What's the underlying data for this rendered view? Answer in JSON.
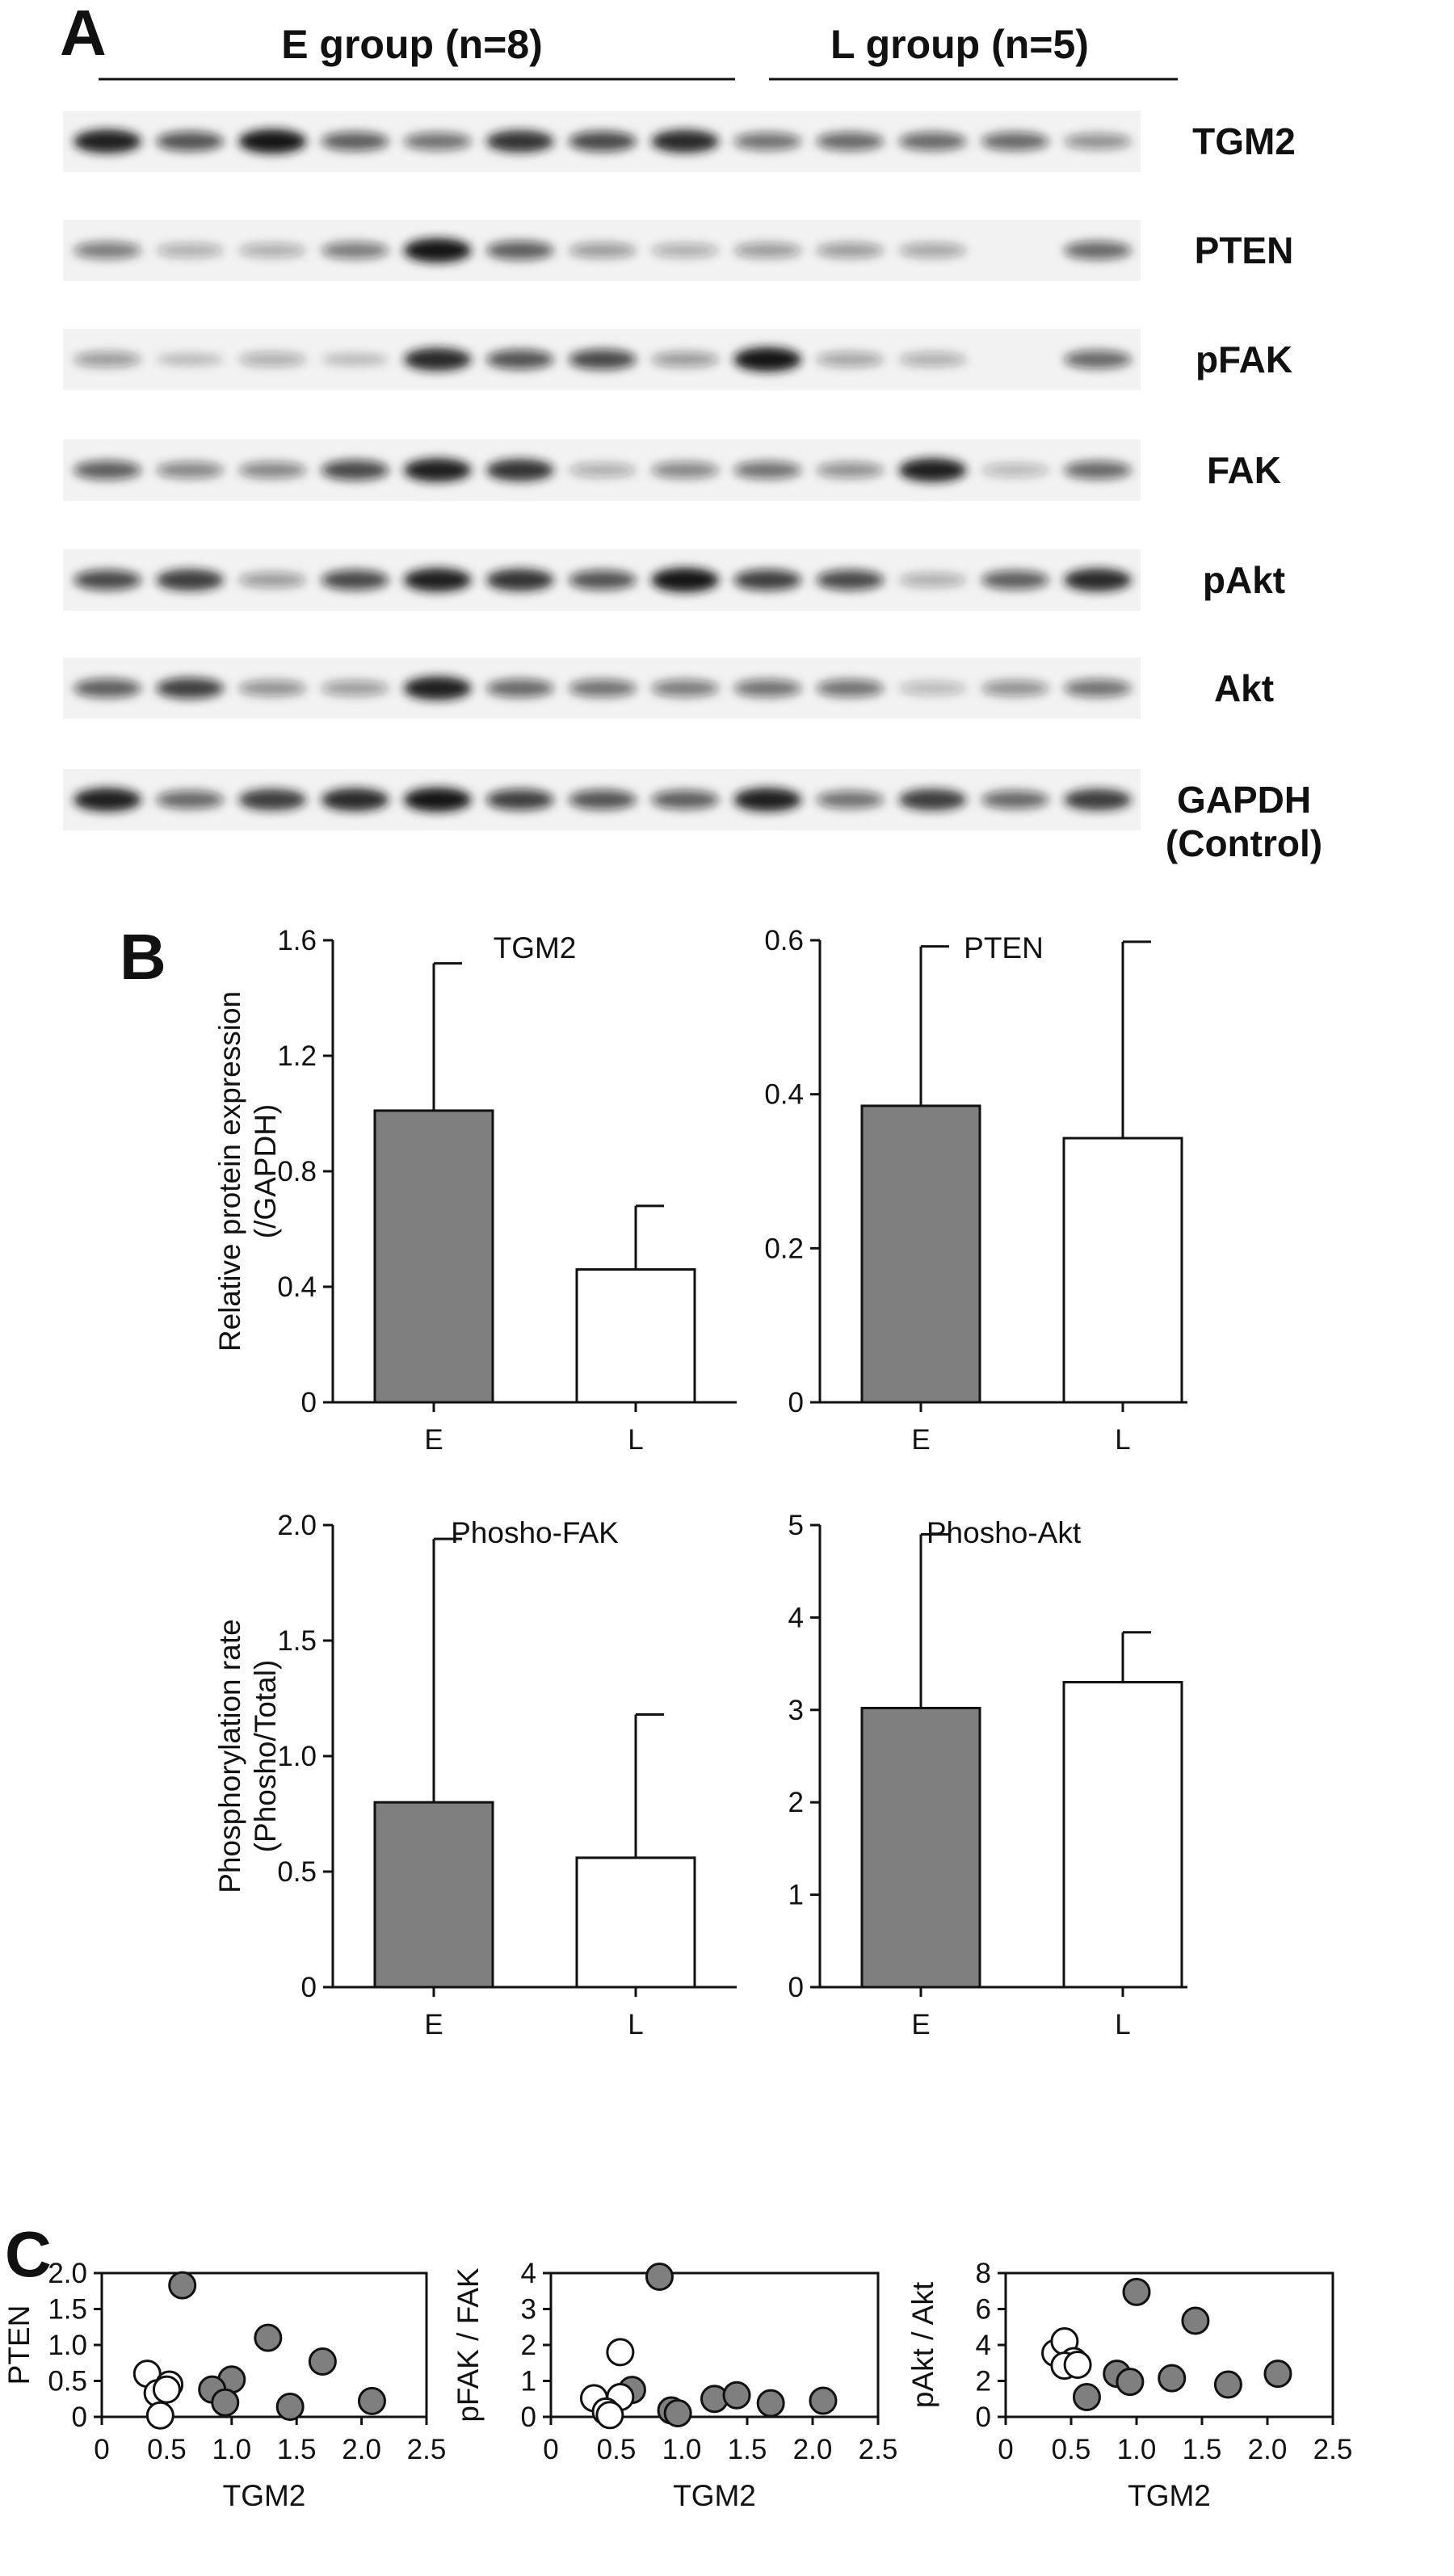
{
  "panels": {
    "a": {
      "letter": "A",
      "groups": [
        {
          "label": "E group (n=8)",
          "lanes": 8
        },
        {
          "label": "L group (n=5)",
          "lanes": 5
        }
      ],
      "blots": [
        {
          "label": "TGM2",
          "intensity": [
            0.95,
            0.65,
            1.0,
            0.6,
            0.5,
            0.85,
            0.7,
            0.9,
            0.5,
            0.55,
            0.55,
            0.55,
            0.35
          ]
        },
        {
          "label": "PTEN",
          "intensity": [
            0.45,
            0.2,
            0.2,
            0.45,
            1.0,
            0.6,
            0.3,
            0.2,
            0.3,
            0.3,
            0.25,
            0.0,
            0.55
          ]
        },
        {
          "label": "pFAK",
          "intensity": [
            0.3,
            0.1,
            0.2,
            0.1,
            0.9,
            0.65,
            0.7,
            0.3,
            1.0,
            0.25,
            0.2,
            0.0,
            0.55
          ]
        },
        {
          "label": "FAK",
          "intensity": [
            0.6,
            0.4,
            0.4,
            0.7,
            0.95,
            0.85,
            0.2,
            0.4,
            0.5,
            0.35,
            0.95,
            0.15,
            0.55
          ]
        },
        {
          "label": "pAkt",
          "intensity": [
            0.7,
            0.8,
            0.3,
            0.7,
            0.95,
            0.85,
            0.65,
            1.0,
            0.75,
            0.7,
            0.2,
            0.6,
            0.9
          ]
        },
        {
          "label": "Akt",
          "intensity": [
            0.6,
            0.75,
            0.35,
            0.3,
            0.95,
            0.55,
            0.5,
            0.45,
            0.5,
            0.5,
            0.15,
            0.35,
            0.5
          ]
        },
        {
          "label": "GAPDH",
          "label2": "(Control)",
          "intensity": [
            0.95,
            0.55,
            0.8,
            0.9,
            1.0,
            0.75,
            0.65,
            0.6,
            0.95,
            0.5,
            0.8,
            0.55,
            0.8
          ]
        }
      ]
    },
    "b": {
      "letter": "B"
    },
    "c": {
      "letter": "C"
    }
  },
  "colors": {
    "e_group": "#7f7f7f",
    "l_group": "#ffffff",
    "outline": "#111111",
    "band": "#141414"
  },
  "chart_data": [
    {
      "type": "bar",
      "title": "TGM2",
      "ylabel": "Relative protein expression (/GAPDH)",
      "ylabel_lines": [
        "Relative protein expression",
        "(/GAPDH)"
      ],
      "categories": [
        "E",
        "L"
      ],
      "values": [
        1.01,
        0.46
      ],
      "errors": [
        0.51,
        0.22
      ],
      "ylim": [
        0,
        1.6
      ],
      "yticks": [
        "0",
        "0.4",
        "0.8",
        "1.2",
        "1.6"
      ],
      "ytick_values": [
        0,
        0.4,
        0.8,
        1.2,
        1.6
      ]
    },
    {
      "type": "bar",
      "title": "PTEN",
      "ylabel": "",
      "categories": [
        "E",
        "L"
      ],
      "values": [
        0.385,
        0.343
      ],
      "errors": [
        0.207,
        0.255
      ],
      "ylim": [
        0,
        0.6
      ],
      "yticks": [
        "0",
        "0.2",
        "0.4",
        "0.6"
      ],
      "ytick_values": [
        0,
        0.2,
        0.4,
        0.6
      ]
    },
    {
      "type": "bar",
      "title": "Phosho-FAK",
      "ylabel": "Phosphorylation rate (Phosho/Total)",
      "ylabel_lines": [
        "Phosphorylation rate",
        "(Phosho/Total)"
      ],
      "categories": [
        "E",
        "L"
      ],
      "values": [
        0.8,
        0.56
      ],
      "errors": [
        1.14,
        0.62
      ],
      "ylim": [
        0,
        2.0
      ],
      "yticks": [
        "0",
        "0.5",
        "1.0",
        "1.5",
        "2.0"
      ],
      "ytick_values": [
        0,
        0.5,
        1.0,
        1.5,
        2.0
      ]
    },
    {
      "type": "bar",
      "title": "Phosho-Akt",
      "ylabel": "",
      "categories": [
        "E",
        "L"
      ],
      "values": [
        3.02,
        3.3
      ],
      "errors": [
        1.88,
        0.54
      ],
      "ylim": [
        0,
        5
      ],
      "yticks": [
        "0",
        "1",
        "2",
        "3",
        "4",
        "5"
      ],
      "ytick_values": [
        0,
        1,
        2,
        3,
        4,
        5
      ]
    },
    {
      "type": "scatter",
      "xlabel": "TGM2",
      "ylabel": "PTEN",
      "xlim": [
        0,
        2.5
      ],
      "ylim": [
        0,
        2.0
      ],
      "xticks": [
        "0",
        "0.5",
        "1.0",
        "1.5",
        "2.0",
        "2.5"
      ],
      "xtick_values": [
        0,
        0.5,
        1.0,
        1.5,
        2.0,
        2.5
      ],
      "yticks": [
        "0",
        "0.5",
        "1.0",
        "1.5",
        "2.0"
      ],
      "ytick_values": [
        0,
        0.5,
        1.0,
        1.5,
        2.0
      ],
      "series": [
        {
          "group": "E",
          "points": [
            [
              0.62,
              1.83
            ],
            [
              1.28,
              1.1
            ],
            [
              1.7,
              0.77
            ],
            [
              1.0,
              0.52
            ],
            [
              0.85,
              0.38
            ],
            [
              0.95,
              0.2
            ],
            [
              1.45,
              0.14
            ],
            [
              2.08,
              0.22
            ]
          ]
        },
        {
          "group": "L",
          "points": [
            [
              0.35,
              0.6
            ],
            [
              0.52,
              0.45
            ],
            [
              0.43,
              0.33
            ],
            [
              0.5,
              0.38
            ],
            [
              0.45,
              0.02
            ]
          ]
        }
      ]
    },
    {
      "type": "scatter",
      "xlabel": "TGM2",
      "ylabel": "pFAK / FAK",
      "xlim": [
        0,
        2.5
      ],
      "ylim": [
        0,
        4
      ],
      "xticks": [
        "0",
        "0.5",
        "1.0",
        "1.5",
        "2.0",
        "2.5"
      ],
      "xtick_values": [
        0,
        0.5,
        1.0,
        1.5,
        2.0,
        2.5
      ],
      "yticks": [
        "0",
        "1",
        "2",
        "3",
        "4"
      ],
      "ytick_values": [
        0,
        1,
        2,
        3,
        4
      ],
      "series": [
        {
          "group": "E",
          "points": [
            [
              0.83,
              3.9
            ],
            [
              0.62,
              0.75
            ],
            [
              1.25,
              0.5
            ],
            [
              1.42,
              0.6
            ],
            [
              1.68,
              0.38
            ],
            [
              2.08,
              0.45
            ],
            [
              0.92,
              0.18
            ],
            [
              0.97,
              0.1
            ]
          ]
        },
        {
          "group": "L",
          "points": [
            [
              0.53,
              1.8
            ],
            [
              0.33,
              0.52
            ],
            [
              0.53,
              0.55
            ],
            [
              0.42,
              0.15
            ],
            [
              0.45,
              0.05
            ]
          ]
        }
      ]
    },
    {
      "type": "scatter",
      "xlabel": "TGM2",
      "ylabel": "pAkt / Akt",
      "xlim": [
        0,
        2.5
      ],
      "ylim": [
        0,
        8
      ],
      "xticks": [
        "0",
        "0.5",
        "1.0",
        "1.5",
        "2.0",
        "2.5"
      ],
      "xtick_values": [
        0,
        0.5,
        1.0,
        1.5,
        2.0,
        2.5
      ],
      "yticks": [
        "0",
        "2",
        "4",
        "6",
        "8"
      ],
      "ytick_values": [
        0,
        2,
        4,
        6,
        8
      ],
      "series": [
        {
          "group": "E",
          "points": [
            [
              1.0,
              6.95
            ],
            [
              1.45,
              5.35
            ],
            [
              0.85,
              2.4
            ],
            [
              0.95,
              1.95
            ],
            [
              1.27,
              2.15
            ],
            [
              1.7,
              1.8
            ],
            [
              2.08,
              2.4
            ],
            [
              0.62,
              1.1
            ]
          ]
        },
        {
          "group": "L",
          "points": [
            [
              0.38,
              3.55
            ],
            [
              0.45,
              4.2
            ],
            [
              0.52,
              3.1
            ],
            [
              0.45,
              2.85
            ],
            [
              0.55,
              2.9
            ]
          ]
        }
      ]
    }
  ]
}
